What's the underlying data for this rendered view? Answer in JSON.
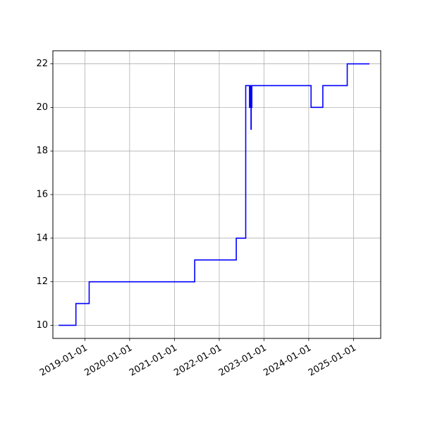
{
  "chart_data": {
    "type": "line",
    "title": "",
    "xlabel": "",
    "ylabel": "",
    "x_scale": "time",
    "xlim": [
      "2018-04-15",
      "2025-08-10"
    ],
    "ylim": [
      9.4,
      22.6
    ],
    "x_ticks": [
      "2019-01-01",
      "2020-01-01",
      "2021-01-01",
      "2022-01-01",
      "2023-01-01",
      "2024-01-01",
      "2025-01-01"
    ],
    "x_tick_labels": [
      "2019-01-01",
      "2020-01-01",
      "2021-01-01",
      "2022-01-01",
      "2023-01-01",
      "2024-01-01",
      "2025-01-01"
    ],
    "y_ticks": [
      10,
      12,
      14,
      16,
      18,
      20,
      22
    ],
    "y_tick_labels": [
      "10",
      "12",
      "14",
      "16",
      "18",
      "20",
      "22"
    ],
    "grid": true,
    "line_color": "#0000ff",
    "step": "post",
    "series": [
      {
        "points": [
          [
            "2018-06-01",
            10
          ],
          [
            "2018-10-20",
            11
          ],
          [
            "2019-02-05",
            12
          ],
          [
            "2021-06-15",
            13
          ],
          [
            "2022-05-20",
            14
          ],
          [
            "2022-08-05",
            21
          ],
          [
            "2022-09-05",
            20
          ],
          [
            "2022-09-08",
            21
          ],
          [
            "2022-09-11",
            20
          ],
          [
            "2022-09-14",
            21
          ],
          [
            "2022-09-17",
            19
          ],
          [
            "2022-09-19",
            21
          ],
          [
            "2022-09-21",
            20
          ],
          [
            "2022-09-24",
            21
          ],
          [
            "2024-01-20",
            20
          ],
          [
            "2024-04-25",
            21
          ],
          [
            "2024-11-10",
            22
          ],
          [
            "2025-05-10",
            22
          ]
        ]
      }
    ]
  }
}
